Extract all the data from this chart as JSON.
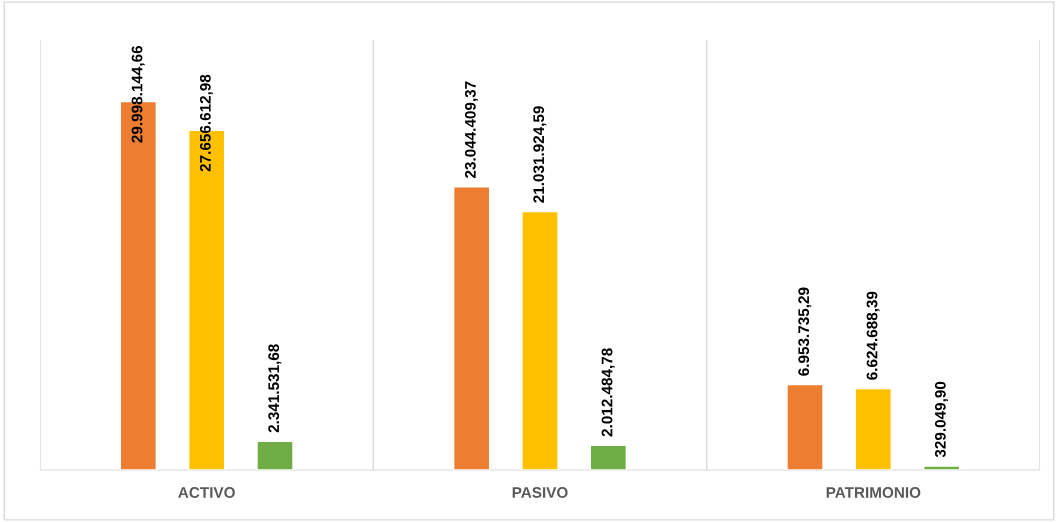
{
  "chart_data": {
    "type": "bar",
    "categories": [
      "ACTIVO",
      "PASIVO",
      "PATRIMONIO"
    ],
    "series": [
      {
        "color": "#ed7d31",
        "values": [
          29998144.66,
          23044409.37,
          6953735.29
        ],
        "value_labels": [
          "29.998.144,66",
          "23.044.409,37",
          "6.953.735,29"
        ]
      },
      {
        "color": "#ffc000",
        "values": [
          27656612.98,
          21031924.59,
          6624688.39
        ],
        "value_labels": [
          "27.656.612,98",
          "21.031.924,59",
          "6.624.688,39"
        ]
      },
      {
        "color": "#70ad47",
        "values": [
          2341531.68,
          2012484.78,
          329049.9
        ],
        "value_labels": [
          "2.341.531,68",
          "2.012.484,78",
          "329.049,90"
        ]
      }
    ],
    "ylim": [
      0,
      35000000
    ],
    "grid": "x",
    "legend": false,
    "tick_labels": "x"
  }
}
